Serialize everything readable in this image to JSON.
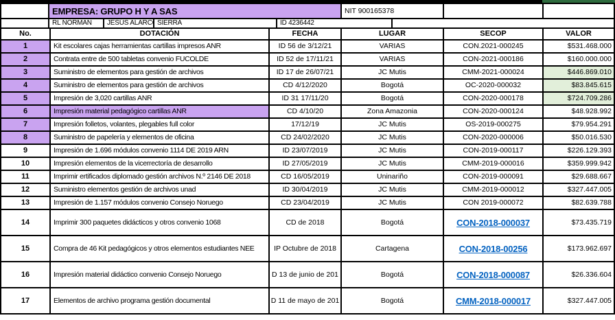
{
  "colors": {
    "purple": "#c9a3f0",
    "green_light": "#e2efda",
    "green_dark": "#2e6b3e",
    "link_blue": "#0563c1",
    "border": "#000000"
  },
  "top": {
    "empresa": "EMPRESA: GRUPO H Y A SAS",
    "nit": "NIT 900165378",
    "rl": "RL NORMAN",
    "nombre": "JESÚS ALARCÓN",
    "apellido": "SIERRA",
    "id": "ID 4236442"
  },
  "columns": [
    "No.",
    "DOTACIÓN",
    "FECHA",
    "LUGAR",
    "SECOP",
    "VALOR"
  ],
  "rows": [
    {
      "no": "1",
      "dotacion": "Kit escolares cajas herramientas cartillas impresos ANR",
      "fecha": "ID 56 de 3/12/21",
      "lugar": "VARIAS",
      "secop": "CON.2021-000245",
      "valor": "$531.468.000",
      "no_purple": true,
      "dotacion_purple": false,
      "valor_green": false,
      "secop_link": false,
      "tall": false
    },
    {
      "no": "2",
      "dotacion": "Contrata entre de 500 tabletas convenio FUCOLDE",
      "fecha": "ID 52 de 17/11/21",
      "lugar": "VARIAS",
      "secop": "CON-2021-000186",
      "valor": "$160.000.000",
      "no_purple": true,
      "dotacion_purple": false,
      "valor_green": false,
      "secop_link": false,
      "tall": false
    },
    {
      "no": "3",
      "dotacion": "Suministro de elementos  para gestión de archivos",
      "fecha": "ID 17 de 26/07/21",
      "lugar": "JC Mutis",
      "secop": "CMM-2021-000024",
      "valor": "$446.869.010",
      "no_purple": true,
      "dotacion_purple": false,
      "valor_green": true,
      "secop_link": false,
      "tall": false
    },
    {
      "no": "4",
      "dotacion": "Suministro de elementos  para gestión de archivos",
      "fecha": "CD 4/12/2020",
      "lugar": "Bogotá",
      "secop": "OC-2020-000032",
      "valor": "$83.845.615",
      "no_purple": true,
      "dotacion_purple": false,
      "valor_green": true,
      "secop_link": false,
      "tall": false
    },
    {
      "no": "5",
      "dotacion": "Impresión de 3,020 cartillas ANR",
      "fecha": "ID 31 17/11/20",
      "lugar": "Bogotá",
      "secop": "CON-2020-000178",
      "valor": "$724.709.286",
      "no_purple": true,
      "dotacion_purple": false,
      "valor_green": true,
      "secop_link": false,
      "tall": false
    },
    {
      "no": "6",
      "dotacion": "Impresión material pedagógico cartillas ANR",
      "fecha": "CD 4/10/20",
      "lugar": "Zona Amazonia",
      "secop": "CON-2020-000124",
      "valor": "$48.928.992",
      "no_purple": true,
      "dotacion_purple": true,
      "valor_green": false,
      "secop_link": false,
      "tall": false
    },
    {
      "no": "7",
      "dotacion": "Impresión folletos, volantes, plegables full color",
      "fecha": "17/12/19",
      "lugar": "JC Mutis",
      "secop": "OS-2019-000275",
      "valor": "$79.954.291",
      "no_purple": true,
      "dotacion_purple": false,
      "valor_green": false,
      "secop_link": false,
      "tall": false
    },
    {
      "no": "8",
      "dotacion": "Suministro de papelería y elementos de oficina",
      "fecha": "CD 24/02/2020",
      "lugar": "JC Mutis",
      "secop": "CON-2020-000006",
      "valor": "$50.016.530",
      "no_purple": true,
      "dotacion_purple": false,
      "valor_green": false,
      "secop_link": false,
      "tall": false
    },
    {
      "no": "9",
      "dotacion": "Impresión de 1.696 módulos convenio 1114 DE 2019 ARN",
      "fecha": "ID 23/07/2019",
      "lugar": "JC Mutis",
      "secop": "CON-2019-000117",
      "valor": "$226.129.393",
      "no_purple": false,
      "dotacion_purple": false,
      "valor_green": false,
      "secop_link": false,
      "tall": false
    },
    {
      "no": "10",
      "dotacion": "Impresión elementos de la vicerrectoría de desarrollo",
      "fecha": "ID 27/05/2019",
      "lugar": "JC Mutis",
      "secop": "CMM-2019-000016",
      "valor": "$359.999.942",
      "no_purple": false,
      "dotacion_purple": false,
      "valor_green": false,
      "secop_link": false,
      "tall": false
    },
    {
      "no": "11",
      "dotacion": "Imprimir ertificados diplomado gestión archivos N.º 2146 DE 2018",
      "fecha": "CD 16/05/2019",
      "lugar": "Uninariño",
      "secop": "CON-2019-000091",
      "valor": "$29.688.667",
      "no_purple": false,
      "dotacion_purple": false,
      "valor_green": false,
      "secop_link": false,
      "tall": false
    },
    {
      "no": "12",
      "dotacion": "Suministro elementos gestión de archivos unad",
      "fecha": "ID 30/04/2019",
      "lugar": "JC Mutis",
      "secop": "CMM-2019-000012",
      "valor": "$327.447.005",
      "no_purple": false,
      "dotacion_purple": false,
      "valor_green": false,
      "secop_link": false,
      "tall": false
    },
    {
      "no": "13",
      "dotacion": "Impresión de 1.157 módulos convenio Consejo Noruego",
      "fecha": "CD 23/04/2019",
      "lugar": "JC Mutis",
      "secop": "CON 2019-000072",
      "valor": "$82.639.788",
      "no_purple": false,
      "dotacion_purple": false,
      "valor_green": false,
      "secop_link": false,
      "tall": false
    },
    {
      "no": "14",
      "dotacion": "Imprimir 300 paquetes didácticos y otros convenio 1068",
      "fecha": "CD de 2018",
      "lugar": "Bogotá",
      "secop": "CON-2018-000037",
      "valor": "$73.435.719",
      "no_purple": false,
      "dotacion_purple": false,
      "valor_green": false,
      "secop_link": true,
      "tall": true
    },
    {
      "no": "15",
      "dotacion": "Compra de 46 Kit pedagógicos y otros elementos estudiantes NEE",
      "fecha": "IP Octubre de 2018",
      "lugar": "Cartagena",
      "secop": "CON-2018-00256",
      "valor": "$173.962.697",
      "no_purple": false,
      "dotacion_purple": false,
      "valor_green": false,
      "secop_link": true,
      "tall": true
    },
    {
      "no": "16",
      "dotacion": "Impresión material didáctico convenio Consejo Noruego",
      "fecha": "D 13 de junio de 201",
      "lugar": "Bogotá",
      "secop": "CON-2018-000087",
      "valor": "$26.336.604",
      "no_purple": false,
      "dotacion_purple": false,
      "valor_green": false,
      "secop_link": true,
      "tall": true
    },
    {
      "no": "17",
      "dotacion": "Elementos de archivo programa gestión documental",
      "fecha": "D 11 de mayo de 201",
      "lugar": "Bogotá",
      "secop": "CMM-2018-000017",
      "valor": "$327.447.005",
      "no_purple": false,
      "dotacion_purple": false,
      "valor_green": false,
      "secop_link": true,
      "tall": true
    }
  ]
}
